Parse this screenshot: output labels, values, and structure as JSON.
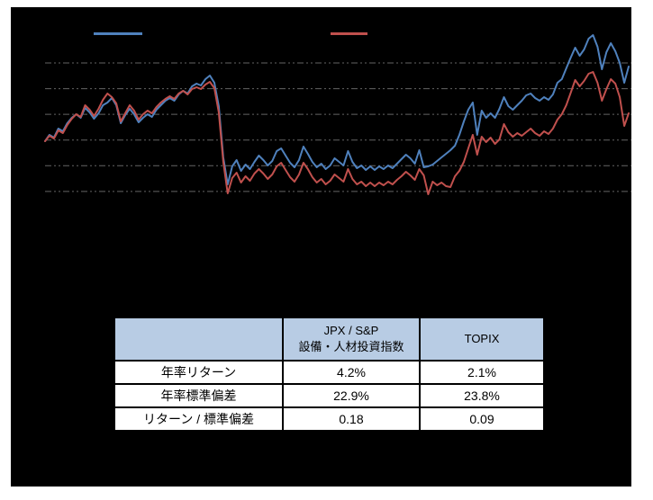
{
  "page": {
    "background": "#ffffff",
    "panel_background": "#000000"
  },
  "legend": {
    "items": [
      {
        "key": "jpx_sp_capex",
        "label": "",
        "color": "#4f81bd"
      },
      {
        "key": "topix",
        "label": "",
        "color": "#c0504d"
      }
    ]
  },
  "chart_data": {
    "type": "line",
    "title": "",
    "xlabel": "",
    "ylabel": "",
    "x_axis_labels_visible": false,
    "y_axis_labels_visible": false,
    "legend_position": "top",
    "ylim": [
      20,
      191.5
    ],
    "gridlines": {
      "values": [
        60,
        80,
        100,
        120,
        140,
        160
      ],
      "style": "dashed",
      "color": "#8f8f8f"
    },
    "series": [
      {
        "key": "jpx_sp_capex",
        "name": "JPX / S&P 設備・人材投資指数",
        "color": "#4f81bd",
        "values": [
          99.1,
          104,
          101.9,
          108.9,
          106.8,
          113.1,
          117.3,
          120.1,
          117.3,
          125,
          121.5,
          116.6,
          120.8,
          127.1,
          129.2,
          132.7,
          127.1,
          113.1,
          119.4,
          124.3,
          120.1,
          113.8,
          117.3,
          120.1,
          118,
          123.6,
          127.1,
          130.6,
          132.7,
          130.6,
          135.5,
          138.3,
          136.2,
          141.8,
          143.9,
          142.5,
          147.4,
          150.2,
          144.6,
          126.4,
          86.5,
          65.5,
          79.5,
          84.4,
          76,
          80.9,
          77.4,
          83,
          87.9,
          84.4,
          80.2,
          83.7,
          91.4,
          93.5,
          87.9,
          82.3,
          78.8,
          84.4,
          94.9,
          89.3,
          83,
          78.8,
          81.6,
          77.4,
          80.2,
          85.8,
          83,
          80.2,
          91.4,
          83,
          78.1,
          80.2,
          76.7,
          79.5,
          76.7,
          79.5,
          77.4,
          80.2,
          78.1,
          81.6,
          85.1,
          88.6,
          85.8,
          81.6,
          92.1,
          78.8,
          79.5,
          80.9,
          83.7,
          86.5,
          89.3,
          92.1,
          95.6,
          104,
          114.5,
          123.6,
          129.2,
          104,
          122.9,
          117.3,
          120.8,
          117.3,
          124.3,
          133.4,
          126.4,
          123.6,
          127.1,
          130.6,
          134.8,
          136.2,
          132.7,
          130.6,
          133.4,
          131.3,
          135.5,
          144.6,
          147.4,
          155.8,
          164.2,
          171.9,
          165.6,
          170.5,
          178.9,
          181.7,
          172.6,
          155.1,
          168.4,
          175.4,
          169.1,
          160,
          144.6,
          157.2
        ]
      },
      {
        "key": "topix",
        "name": "TOPIX",
        "color": "#c0504d",
        "values": [
          99.1,
          103.3,
          101.2,
          107.5,
          105.4,
          111.7,
          116.6,
          120.1,
          118,
          127.1,
          123.6,
          118.7,
          124.3,
          131.3,
          136.2,
          133.4,
          128.5,
          114.5,
          120.8,
          127.1,
          122.9,
          115.9,
          120.1,
          122.9,
          120.8,
          125.7,
          129.2,
          132,
          134.1,
          132,
          136.2,
          138.3,
          135.5,
          139.7,
          141.1,
          139.7,
          143.2,
          145.3,
          140.4,
          121.5,
          83,
          58.5,
          70.4,
          74.6,
          66.9,
          71.8,
          68.3,
          73.9,
          77.4,
          73.9,
          69.7,
          73.2,
          79.5,
          82.3,
          76.7,
          71.1,
          67.6,
          73.2,
          82.3,
          77.4,
          71.1,
          66.9,
          69.7,
          65.5,
          68.3,
          73.2,
          70.4,
          67.6,
          77.4,
          69.7,
          65.5,
          67.6,
          64.1,
          66.9,
          64.1,
          66.9,
          64.8,
          67.6,
          65.5,
          69,
          71.8,
          75.3,
          72.5,
          69,
          77.4,
          72.5,
          57.8,
          67.6,
          64.8,
          66.9,
          64.1,
          63.4,
          71.8,
          76,
          83,
          93.5,
          104,
          88.6,
          102.6,
          98.4,
          101.9,
          97,
          100.5,
          112.4,
          106.1,
          102.6,
          105.4,
          103.3,
          106.1,
          108.9,
          105.4,
          103.3,
          106.8,
          104.7,
          108.9,
          115.9,
          120.1,
          127.1,
          136.9,
          146.7,
          141.8,
          146,
          151.6,
          153,
          144.6,
          130.6,
          139.7,
          147.4,
          143.9,
          133.4,
          111,
          120.8
        ]
      }
    ]
  },
  "table": {
    "header": {
      "c1": "",
      "c2": "JPX / S&P\n設備・人材投資指数",
      "c3": "TOPIX",
      "background": "#b8cce4"
    },
    "rows": [
      [
        "年率リターン",
        "4.2%",
        "2.1%"
      ],
      [
        "年率標準偏差",
        "22.9%",
        "23.8%"
      ],
      [
        "リターン / 標準偏差",
        "0.18",
        "0.09"
      ]
    ]
  }
}
